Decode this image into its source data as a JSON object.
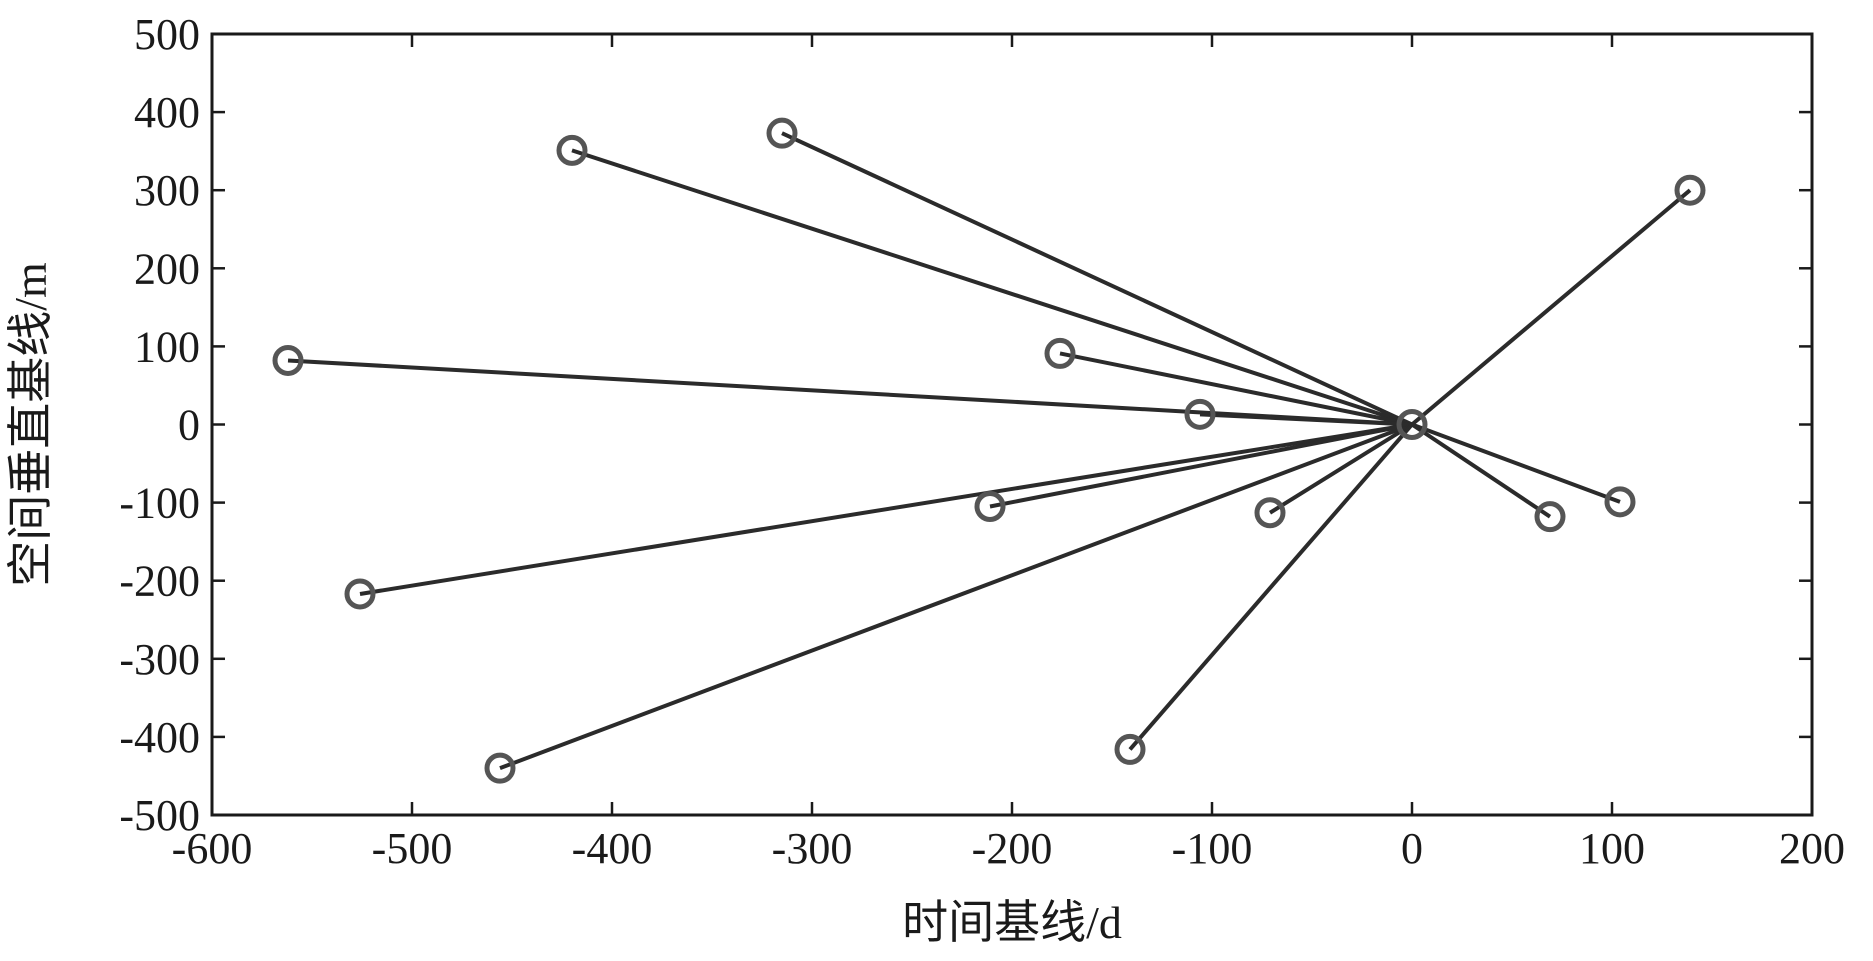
{
  "chart_data": {
    "type": "scatter",
    "title": "",
    "xlabel": "时间基线/d",
    "ylabel": "空间垂直基线/m",
    "xlim": [
      -600,
      200
    ],
    "ylim": [
      -500,
      500
    ],
    "xticks": [
      -600,
      -500,
      -400,
      -300,
      -200,
      -100,
      0,
      100,
      200
    ],
    "yticks": [
      -500,
      -400,
      -300,
      -200,
      -100,
      0,
      100,
      200,
      300,
      400,
      500
    ],
    "xtick_labels": [
      "-600",
      "-500",
      "-400",
      "-300",
      "-200",
      "-100",
      "0",
      "100",
      "200"
    ],
    "ytick_labels": [
      "-500",
      "-400",
      "-300",
      "-200",
      "-100",
      "0",
      "100",
      "200",
      "300",
      "400",
      "500"
    ],
    "grid": false,
    "marker": "circle",
    "hub": {
      "x": 0,
      "y": 0
    },
    "points": [
      {
        "x": -562,
        "y": 82
      },
      {
        "x": -420,
        "y": 351
      },
      {
        "x": -315,
        "y": 373
      },
      {
        "x": -526,
        "y": -217
      },
      {
        "x": -456,
        "y": -440
      },
      {
        "x": -211,
        "y": -105
      },
      {
        "x": -176,
        "y": 91
      },
      {
        "x": -106,
        "y": 13
      },
      {
        "x": -71,
        "y": -113
      },
      {
        "x": -141,
        "y": -416
      },
      {
        "x": 69,
        "y": -118
      },
      {
        "x": 104,
        "y": -99
      },
      {
        "x": 139,
        "y": 300
      }
    ]
  }
}
